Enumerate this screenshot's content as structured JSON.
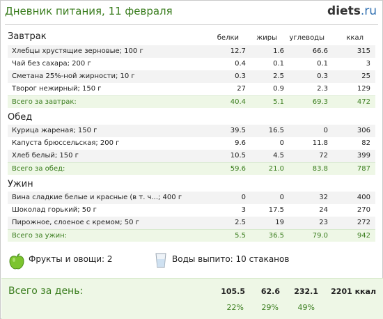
{
  "header": {
    "title": "Дневник питания, 11 февраля",
    "logo_main": "diets",
    "logo_suffix": ".ru"
  },
  "columns": [
    "белки",
    "жиры",
    "углеводы",
    "ккал"
  ],
  "meals": [
    {
      "title": "Завтрак",
      "items": [
        {
          "name": "Хлебцы хрустящие зерновые; 100 г",
          "protein": "12.7",
          "fat": "1.6",
          "carbs": "66.6",
          "kcal": "315"
        },
        {
          "name": "Чай без сахара; 200 г",
          "protein": "0.4",
          "fat": "0.1",
          "carbs": "0.1",
          "kcal": "3"
        },
        {
          "name": "Сметана 25%-ной жирности; 10 г",
          "protein": "0.3",
          "fat": "2.5",
          "carbs": "0.3",
          "kcal": "25"
        },
        {
          "name": "Творог нежирный; 150 г",
          "protein": "27",
          "fat": "0.9",
          "carbs": "2.3",
          "kcal": "129"
        }
      ],
      "total": {
        "label": "Всего за завтрак:",
        "protein": "40.4",
        "fat": "5.1",
        "carbs": "69.3",
        "kcal": "472"
      }
    },
    {
      "title": "Обед",
      "items": [
        {
          "name": "Курица жареная; 150 г",
          "protein": "39.5",
          "fat": "16.5",
          "carbs": "0",
          "kcal": "306"
        },
        {
          "name": "Капуста брюссельская; 200 г",
          "protein": "9.6",
          "fat": "0",
          "carbs": "11.8",
          "kcal": "82"
        },
        {
          "name": "Хлеб белый; 150 г",
          "protein": "10.5",
          "fat": "4.5",
          "carbs": "72",
          "kcal": "399"
        }
      ],
      "total": {
        "label": "Всего за обед:",
        "protein": "59.6",
        "fat": "21.0",
        "carbs": "83.8",
        "kcal": "787"
      }
    },
    {
      "title": "Ужин",
      "items": [
        {
          "name": "Вина сладкие белые и красные (в т. ч...; 400 г",
          "protein": "0",
          "fat": "0",
          "carbs": "32",
          "kcal": "400"
        },
        {
          "name": "Шоколад горький; 50 г",
          "protein": "3",
          "fat": "17.5",
          "carbs": "24",
          "kcal": "270"
        },
        {
          "name": "Пирожное, слоеное с кремом; 50 г",
          "protein": "2.5",
          "fat": "19",
          "carbs": "23",
          "kcal": "272"
        }
      ],
      "total": {
        "label": "Всего за ужин:",
        "protein": "5.5",
        "fat": "36.5",
        "carbs": "79.0",
        "kcal": "942"
      }
    }
  ],
  "info": {
    "fruits": "Фрукты и овощи: 2",
    "water": "Воды выпито: 10 стаканов",
    "fruits_icon": "apple-icon",
    "water_icon": "glass-icon"
  },
  "day_total": {
    "label": "Всего за день:",
    "protein": "105.5",
    "fat": "62.6",
    "carbs": "232.1",
    "kcal": "2201 ккал",
    "protein_pct": "22%",
    "fat_pct": "29%",
    "carbs_pct": "49%"
  },
  "colors": {
    "accent_green": "#3a7d1e",
    "total_bg": "#eef7e6"
  }
}
